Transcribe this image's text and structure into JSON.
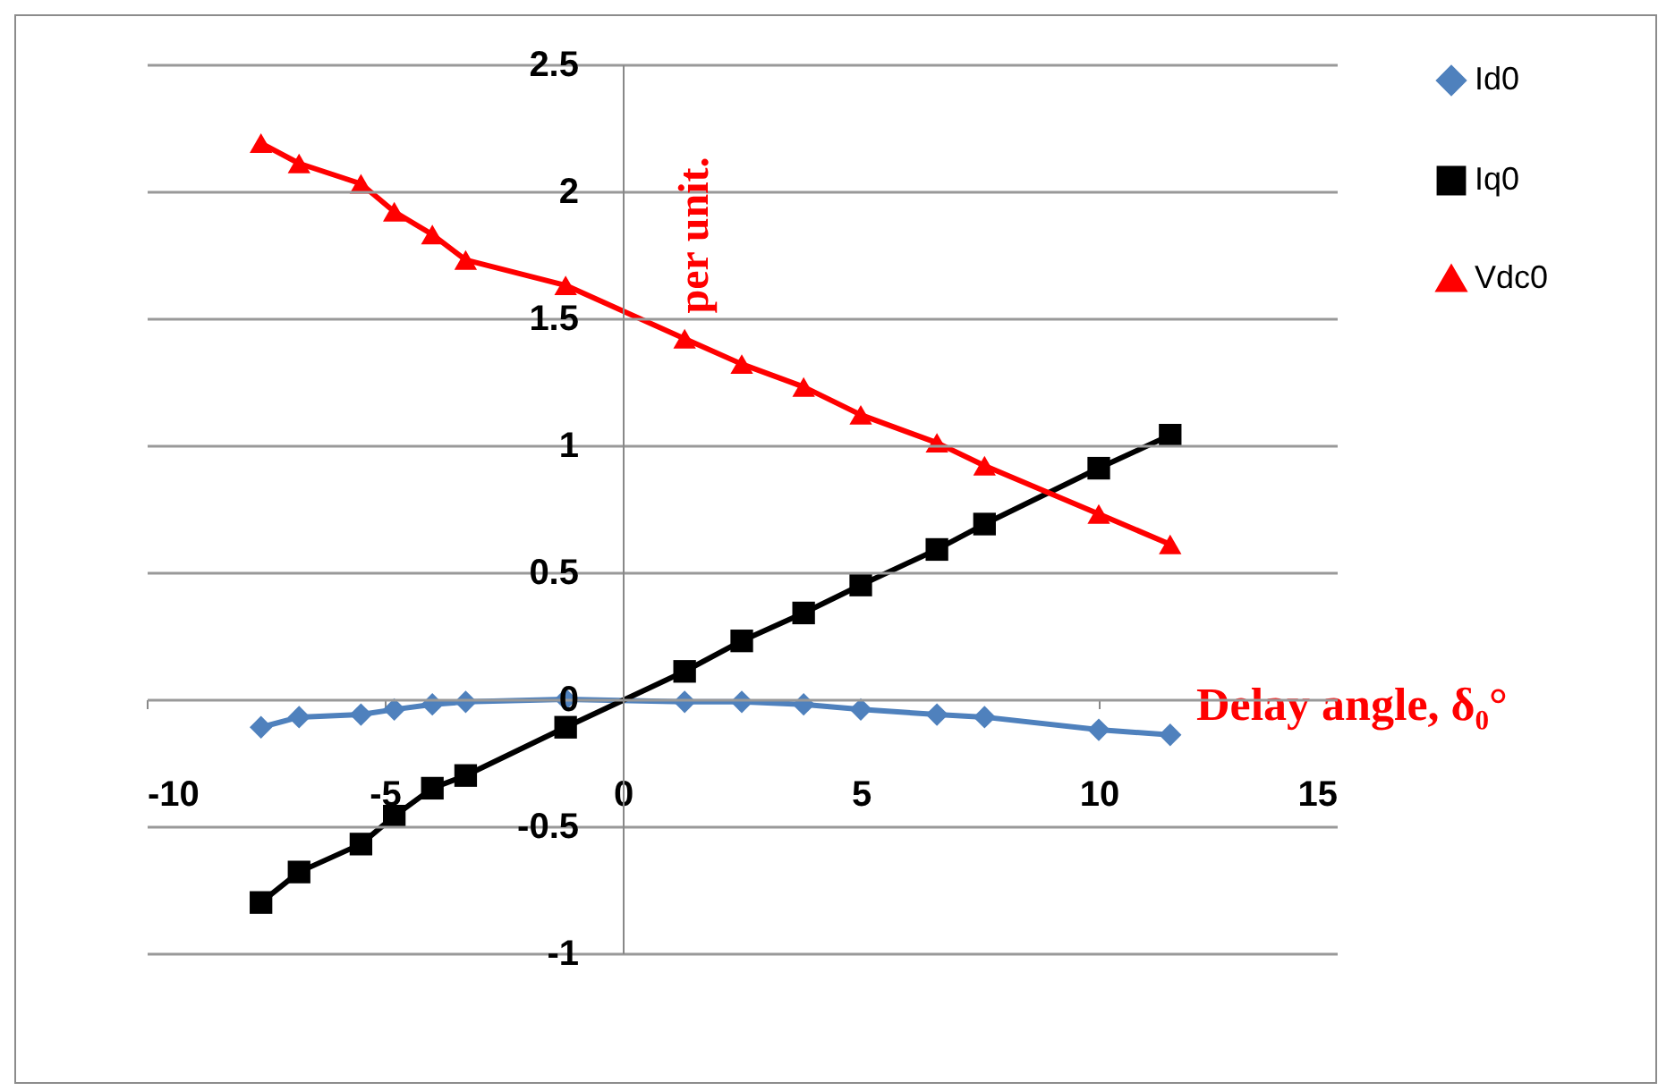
{
  "chart_data": {
    "type": "line",
    "xlabel": "Delay angle, δ₀°",
    "ylabel": "per unit.",
    "x": [
      -7.6,
      -6.8,
      -5.5,
      -4.8,
      -4,
      -3.3,
      -1.2,
      1.3,
      2.5,
      3.8,
      5,
      6.6,
      7.6,
      10,
      11.5
    ],
    "xlim": [
      -10,
      15
    ],
    "xticks": [
      -10,
      -5,
      0,
      5,
      10,
      15
    ],
    "ylim": [
      -1,
      2.5
    ],
    "yticks": [
      -1,
      -0.5,
      0,
      0.5,
      1,
      1.5,
      2,
      2.5
    ],
    "grid": "y",
    "legend": "right",
    "series": [
      {
        "name": "Id0",
        "color": "#4f81bd",
        "marker": "diamond",
        "values": [
          -0.11,
          -0.07,
          -0.06,
          -0.04,
          -0.02,
          -0.01,
          0,
          -0.01,
          -0.01,
          -0.02,
          -0.04,
          -0.06,
          -0.07,
          -0.12,
          -0.14
        ]
      },
      {
        "name": "Iq0",
        "color": "#000000",
        "marker": "square",
        "values": [
          -0.8,
          -0.68,
          -0.57,
          -0.46,
          -0.35,
          -0.3,
          -0.11,
          0.11,
          0.23,
          0.34,
          0.45,
          0.59,
          0.69,
          0.91,
          1.04
        ]
      },
      {
        "name": "Vdc0",
        "color": "#ff0000",
        "marker": "triangle",
        "values": [
          2.19,
          2.11,
          2.03,
          1.92,
          1.83,
          1.73,
          1.63,
          1.42,
          1.32,
          1.23,
          1.12,
          1.01,
          0.92,
          0.73,
          0.61
        ]
      }
    ]
  }
}
